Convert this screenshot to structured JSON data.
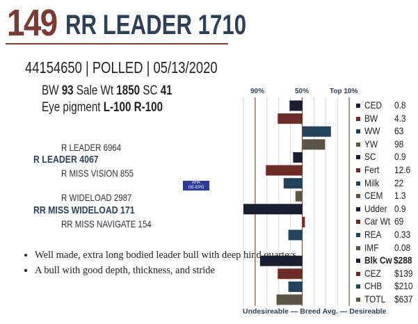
{
  "header": {
    "lot": "149",
    "name": "RR LEADER 1710",
    "id_line": "44154650 | POLLED | 05/13/2020"
  },
  "stats": {
    "bw_label": "BW",
    "bw": "93",
    "sale_label": "Sale Wt",
    "sale": "1850",
    "sc_label": "SC",
    "sc": "41",
    "eye_label": "Eye pigment",
    "eye_l": "L-100",
    "eye_r": "R-100"
  },
  "pedigree": {
    "sire_sire": "R LEADER 6964",
    "sire": "R LEADER 4067",
    "sire_dam": "R MISS VISION 855",
    "dam_sire": "R WIDELOAD 2987",
    "dam": "RR MISS WIDELOAD 171",
    "dam_dam": "RR MISS NAVIGATE 154"
  },
  "logo": {
    "text": "AHA GE-EPD"
  },
  "notes": [
    "Well made, extra long bodied leader bull with deep hind quarters",
    "A bull with good depth, thickness, and stride"
  ],
  "chart_data": {
    "type": "bar",
    "orientation": "horizontal",
    "axis_labels": [
      "90%",
      "50%",
      "Top 10%"
    ],
    "footer": "Undesireable — Breed Avg. —  Desireable",
    "xlim_percentile_rank": [
      100,
      0
    ],
    "categories": [
      "CED",
      "BW",
      "WW",
      "YW",
      "SC",
      "Fert",
      "Milk",
      "CEM",
      "Udder",
      "Car Wt",
      "REA",
      "IMF",
      "Blk Cw",
      "CEZ",
      "CHB",
      "TOTL"
    ],
    "epd_values": [
      "0.8",
      "4.3",
      "63",
      "98",
      "0.9",
      "12.6",
      "22",
      "1.3",
      "0.9",
      "69",
      "0.33",
      "0.08",
      "$288",
      "$139",
      "$210",
      "$637"
    ],
    "percentile_rank": [
      61,
      71,
      26,
      31,
      58,
      81,
      66,
      56,
      100,
      48,
      62,
      50,
      86,
      71,
      62,
      72
    ],
    "bold": [
      "Blk Cw"
    ],
    "colors": [
      "#1b1e30",
      "#6e2b25",
      "#22435a",
      "#5b5545"
    ]
  }
}
